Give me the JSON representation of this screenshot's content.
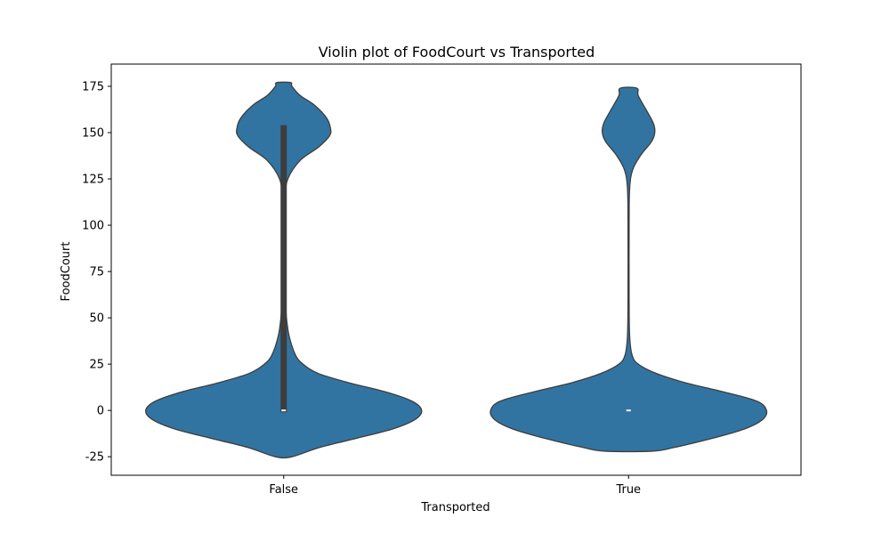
{
  "chart_data": {
    "type": "violin",
    "title": "Violin plot of FoodCourt vs Transported",
    "xlabel": "Transported",
    "ylabel": "FoodCourt",
    "categories": [
      "False",
      "True"
    ],
    "ylim": [
      -35,
      187
    ],
    "yticks": [
      -25,
      0,
      25,
      50,
      75,
      100,
      125,
      150,
      175
    ],
    "colors": {
      "fill": "#3274a1",
      "edge": "#3d3d3d",
      "box": "#3d3d3d",
      "median": "#ffffff"
    },
    "violins": [
      {
        "category": "False",
        "density": [
          [
            -25,
            0.06
          ],
          [
            -20,
            0.26
          ],
          [
            -15,
            0.53
          ],
          [
            -10,
            0.79
          ],
          [
            -5,
            0.95
          ],
          [
            0,
            1.0
          ],
          [
            5,
            0.93
          ],
          [
            10,
            0.74
          ],
          [
            15,
            0.47
          ],
          [
            20,
            0.25
          ],
          [
            25,
            0.14
          ],
          [
            30,
            0.085
          ],
          [
            40,
            0.04
          ],
          [
            50,
            0.02
          ],
          [
            60,
            0.012
          ],
          [
            80,
            0.008
          ],
          [
            100,
            0.008
          ],
          [
            115,
            0.012
          ],
          [
            125,
            0.03
          ],
          [
            135,
            0.12
          ],
          [
            142,
            0.25
          ],
          [
            148,
            0.33
          ],
          [
            152,
            0.34
          ],
          [
            158,
            0.31
          ],
          [
            165,
            0.22
          ],
          [
            170,
            0.12
          ],
          [
            175,
            0.06
          ],
          [
            177,
            0.05
          ]
        ],
        "box": {
          "q1": -1,
          "q3": 154,
          "median": 0
        }
      },
      {
        "category": "True",
        "density": [
          [
            -22,
            0.17
          ],
          [
            -20,
            0.33
          ],
          [
            -15,
            0.61
          ],
          [
            -10,
            0.84
          ],
          [
            -5,
            0.97
          ],
          [
            0,
            1.0
          ],
          [
            5,
            0.93
          ],
          [
            10,
            0.69
          ],
          [
            15,
            0.41
          ],
          [
            20,
            0.2
          ],
          [
            25,
            0.07
          ],
          [
            30,
            0.025
          ],
          [
            40,
            0.008
          ],
          [
            60,
            0.004
          ],
          [
            100,
            0.004
          ],
          [
            120,
            0.008
          ],
          [
            130,
            0.03
          ],
          [
            138,
            0.09
          ],
          [
            145,
            0.165
          ],
          [
            150,
            0.19
          ],
          [
            155,
            0.18
          ],
          [
            162,
            0.13
          ],
          [
            170,
            0.07
          ],
          [
            174,
            0.06
          ]
        ],
        "box": {
          "q1": 0,
          "q3": 0,
          "median": 0
        }
      }
    ]
  }
}
